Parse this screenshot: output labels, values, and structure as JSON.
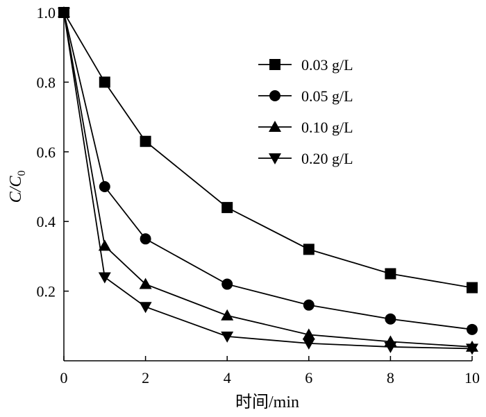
{
  "chart_data": {
    "type": "line",
    "title": "",
    "xlabel": "时间/min",
    "ylabel": {
      "main": "C/C",
      "subscript": "0"
    },
    "xlim": [
      0,
      10
    ],
    "ylim": [
      0,
      1.0
    ],
    "x_ticks": [
      0,
      2,
      4,
      6,
      8,
      10
    ],
    "x_tick_labels": [
      "0",
      "2",
      "4",
      "6",
      "8",
      "10"
    ],
    "y_ticks": [
      0.2,
      0.4,
      0.6,
      0.8,
      1.0
    ],
    "y_tick_labels": [
      "0.2",
      "0.4",
      "0.6",
      "0.8",
      "1.0"
    ],
    "grid": false,
    "legend_position": "top-right",
    "x": [
      0,
      1,
      2,
      4,
      6,
      8,
      10
    ],
    "series": [
      {
        "name": "0.03 g/L",
        "marker": "square",
        "values": [
          1.0,
          0.8,
          0.63,
          0.44,
          0.32,
          0.25,
          0.21
        ]
      },
      {
        "name": "0.05 g/L",
        "marker": "circle",
        "values": [
          1.0,
          0.5,
          0.35,
          0.22,
          0.16,
          0.12,
          0.09
        ]
      },
      {
        "name": "0.10 g/L",
        "marker": "triangle-up",
        "values": [
          1.0,
          0.33,
          0.22,
          0.13,
          0.075,
          0.055,
          0.04
        ]
      },
      {
        "name": "0.20 g/L",
        "marker": "triangle-down",
        "values": [
          1.0,
          0.24,
          0.155,
          0.07,
          0.05,
          0.04,
          0.035
        ]
      }
    ],
    "colors": {
      "line": "#000000",
      "marker": "#000000",
      "axis": "#000000"
    }
  }
}
